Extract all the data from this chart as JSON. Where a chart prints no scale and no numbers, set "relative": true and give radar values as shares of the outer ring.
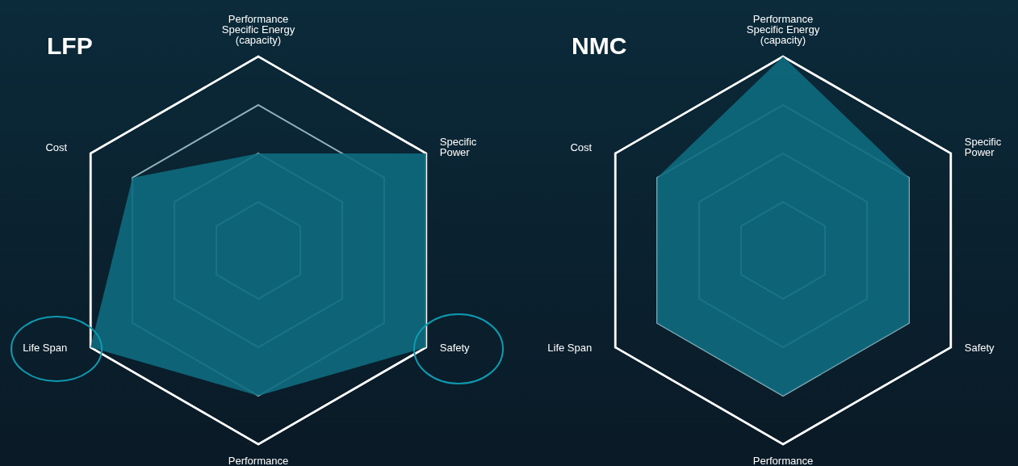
{
  "chart_data": [
    {
      "type": "radar",
      "title": "LFP",
      "categories": [
        "Performance Specific Energy (capacity)",
        "Specific Power",
        "Safety",
        "Performance",
        "Life Span",
        "Cost"
      ],
      "relative": true,
      "grid": true,
      "legend": false,
      "series": [
        {
          "color": "#0e6b7e",
          "values": [
            0.5,
            1,
            1,
            0.75,
            1,
            0.75
          ]
        }
      ]
    },
    {
      "type": "radar",
      "title": "NMC",
      "categories": [
        "Performance Specific Energy (capacity)",
        "Specific Power",
        "Safety",
        "Performance",
        "Life Span",
        "Cost"
      ],
      "relative": true,
      "grid": true,
      "legend": false,
      "series": [
        {
          "color": "#0e6b7e",
          "values": [
            1,
            0.75,
            0.75,
            0.75,
            0.75,
            0.75
          ]
        }
      ]
    }
  ]
}
